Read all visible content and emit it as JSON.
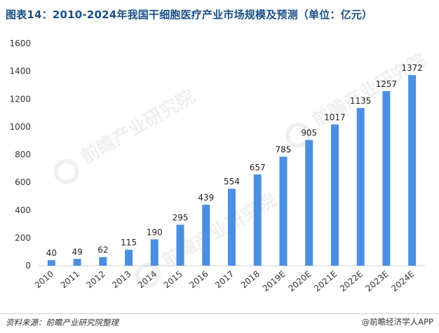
{
  "title": "图表14：2010-2024年我国干细胞医疗产业市场规模及预测（单位：亿元）",
  "footer": {
    "source": "资料来源：前瞻产业研究院整理",
    "brand": "@前瞻经济学人APP"
  },
  "watermark": {
    "text": "前瞻产业研究院"
  },
  "colors": {
    "bar": "#4a8fe0",
    "title": "#1a4f86",
    "axis": "#cfcfcf"
  },
  "chart_data": {
    "type": "bar",
    "title": "图表14：2010-2024年我国干细胞医疗产业市场规模及预测（单位：亿元）",
    "xlabel": "",
    "ylabel": "",
    "categories": [
      "2010",
      "2011",
      "2012",
      "2013",
      "2014",
      "2015",
      "2016",
      "2017",
      "2018",
      "2019E",
      "2020E",
      "2021E",
      "2022E",
      "2023E",
      "2024E"
    ],
    "values": [
      40,
      49,
      62,
      115,
      190,
      295,
      439,
      554,
      657,
      785,
      905,
      1017,
      1135,
      1257,
      1372
    ],
    "ylim": [
      0,
      1600
    ],
    "yticks": [
      0,
      200,
      400,
      600,
      800,
      1000,
      1200,
      1400,
      1600
    ],
    "grid": false,
    "legend": "none"
  }
}
